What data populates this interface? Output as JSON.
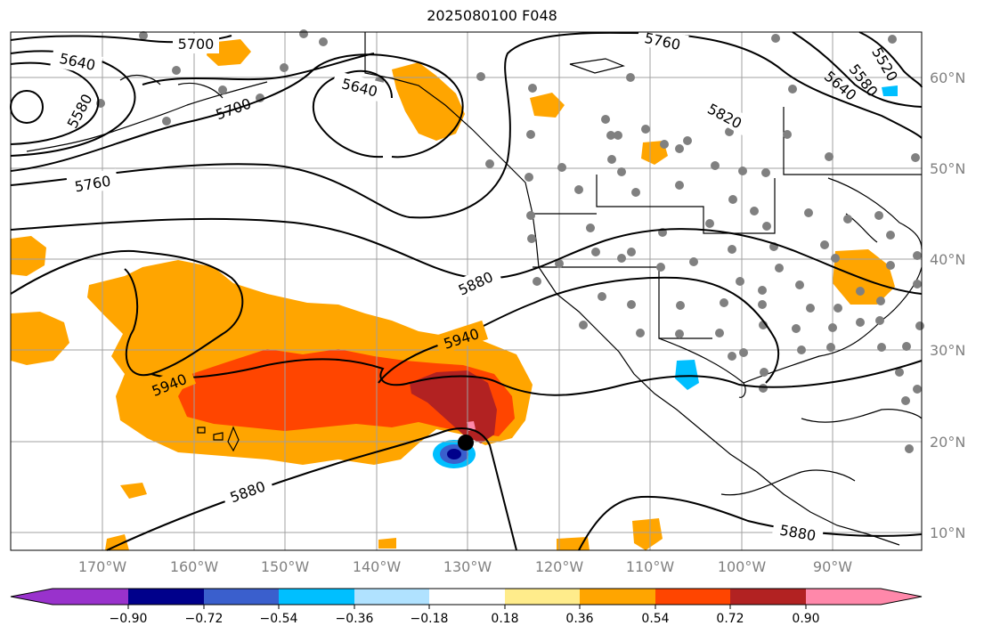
{
  "title": "2025080100 F048",
  "longitude_labels": [
    "170°W",
    "160°W",
    "150°W",
    "140°W",
    "130°W",
    "120°W",
    "110°W",
    "100°W",
    "90°W"
  ],
  "latitude_labels": [
    "60°N",
    "50°N",
    "40°N",
    "30°N",
    "20°N",
    "10°N"
  ],
  "contour_labels": [
    "5700",
    "5640",
    "5580",
    "5700",
    "5640",
    "5760",
    "5820",
    "5640",
    "5580",
    "5520",
    "5760",
    "5880",
    "5940",
    "5940",
    "5880",
    "5880"
  ],
  "colorbar": {
    "ticks": [
      "−0.90",
      "−0.72",
      "−0.54",
      "−0.36",
      "−0.18",
      "0.18",
      "0.36",
      "0.54",
      "0.72",
      "0.90"
    ],
    "colors": [
      "#9932cc",
      "#00008b",
      "#3a5fcd",
      "#00bfff",
      "#b0e2ff",
      "#ffffff",
      "#ffec8b",
      "#ffa500",
      "#ff4500",
      "#b22222",
      "#ff88aa"
    ]
  },
  "storm_marker_icon": "storm-center-dot-icon"
}
